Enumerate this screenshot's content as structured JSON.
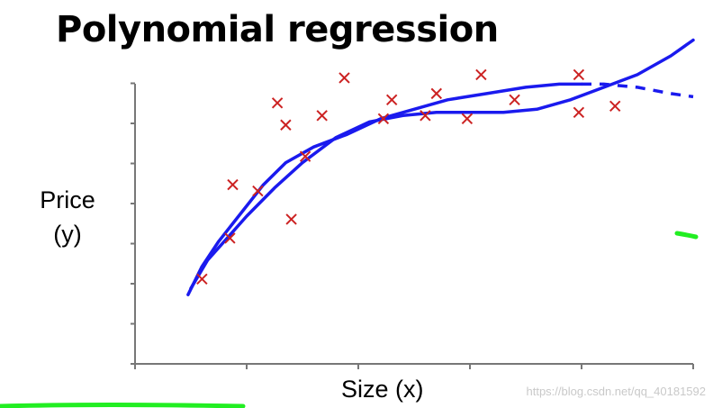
{
  "title": "Polynomial regression",
  "watermark": "https://blog.csdn.net/qq_40181592",
  "colors": {
    "points": "#cc2222",
    "fit": "#1a1aee",
    "axis": "#777777",
    "green_mark": "#22ee22"
  },
  "chart_data": {
    "type": "scatter",
    "xlabel": "Size (x)",
    "ylabel_lines": [
      "Price",
      "(y)"
    ],
    "xlim": [
      0,
      10
    ],
    "ylim": [
      0,
      10
    ],
    "x_ticks": [
      0,
      2,
      4,
      6,
      8,
      10
    ],
    "y_ticks": [
      0,
      1,
      2,
      3,
      4,
      5,
      6,
      7
    ],
    "grid": false,
    "points": [
      {
        "x": 1.2,
        "y": 2.7
      },
      {
        "x": 1.7,
        "y": 4.0
      },
      {
        "x": 1.75,
        "y": 5.7
      },
      {
        "x": 2.2,
        "y": 5.5
      },
      {
        "x": 2.55,
        "y": 8.3
      },
      {
        "x": 2.7,
        "y": 7.6
      },
      {
        "x": 2.8,
        "y": 4.6
      },
      {
        "x": 3.05,
        "y": 6.6
      },
      {
        "x": 3.35,
        "y": 7.9
      },
      {
        "x": 3.75,
        "y": 9.1
      },
      {
        "x": 4.45,
        "y": 7.8
      },
      {
        "x": 4.6,
        "y": 8.4
      },
      {
        "x": 5.2,
        "y": 7.9
      },
      {
        "x": 5.4,
        "y": 8.6
      },
      {
        "x": 5.95,
        "y": 7.8
      },
      {
        "x": 6.2,
        "y": 9.2
      },
      {
        "x": 6.8,
        "y": 8.4
      },
      {
        "x": 7.95,
        "y": 8.0
      },
      {
        "x": 7.95,
        "y": 9.2
      },
      {
        "x": 8.6,
        "y": 8.2
      }
    ],
    "curves": [
      {
        "style": "solid-then-dashed",
        "points": [
          [
            0.95,
            2.2
          ],
          [
            1.2,
            3.1
          ],
          [
            1.5,
            3.9
          ],
          [
            1.9,
            4.8
          ],
          [
            2.3,
            5.7
          ],
          [
            2.7,
            6.4
          ],
          [
            3.2,
            6.9
          ],
          [
            3.8,
            7.3
          ],
          [
            4.4,
            7.8
          ],
          [
            5.0,
            8.1
          ],
          [
            5.6,
            8.4
          ],
          [
            6.3,
            8.6
          ],
          [
            7.0,
            8.8
          ],
          [
            7.6,
            8.9
          ],
          [
            8.0,
            8.9
          ]
        ],
        "dashed": [
          [
            8.0,
            8.9
          ],
          [
            8.4,
            8.9
          ],
          [
            9.0,
            8.8
          ],
          [
            9.6,
            8.6
          ],
          [
            10.0,
            8.5
          ]
        ]
      },
      {
        "style": "solid",
        "points": [
          [
            1.0,
            2.4
          ],
          [
            1.3,
            3.3
          ],
          [
            1.6,
            3.9
          ],
          [
            2.0,
            4.7
          ],
          [
            2.5,
            5.6
          ],
          [
            3.0,
            6.4
          ],
          [
            3.6,
            7.2
          ],
          [
            4.2,
            7.7
          ],
          [
            4.8,
            7.9
          ],
          [
            5.4,
            8.0
          ],
          [
            6.0,
            8.0
          ],
          [
            6.6,
            8.0
          ],
          [
            7.2,
            8.1
          ],
          [
            7.8,
            8.4
          ],
          [
            8.4,
            8.8
          ],
          [
            9.0,
            9.2
          ],
          [
            9.6,
            9.8
          ],
          [
            10.0,
            10.3
          ]
        ]
      }
    ]
  }
}
